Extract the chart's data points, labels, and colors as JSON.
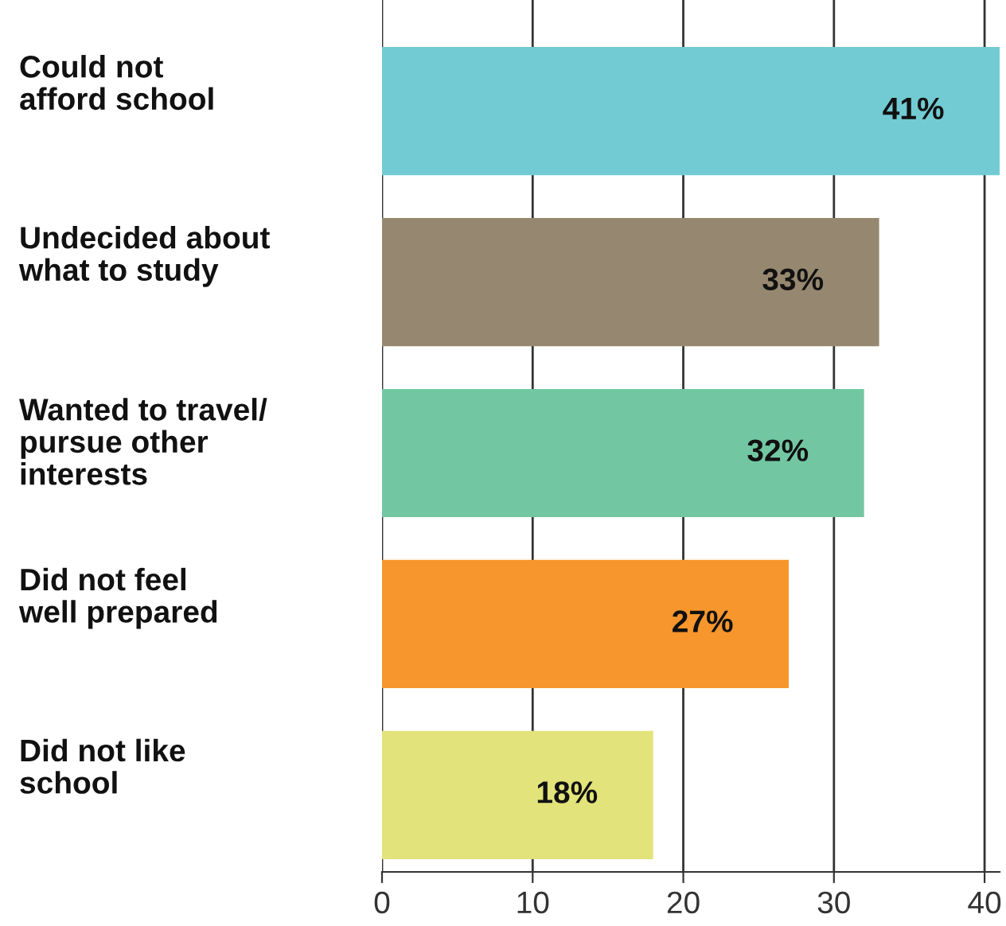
{
  "chart_data": {
    "type": "bar",
    "orientation": "horizontal",
    "categories": [
      "Could not\nafford school",
      "Undecided about\nwhat to study",
      "Wanted to travel/\npursue other\ninterests",
      "Did not feel\nwell prepared",
      "Did not like\nschool"
    ],
    "values": [
      41,
      33,
      32,
      27,
      18
    ],
    "colors": [
      "#72cbd3",
      "#968870",
      "#72c7a2",
      "#f7962c",
      "#e2e37a"
    ],
    "value_labels": [
      "41%",
      "33%",
      "32%",
      "27%",
      "18%"
    ],
    "xlim": [
      0,
      41
    ],
    "xticks": [
      0,
      10,
      20,
      30,
      40
    ],
    "grid": "x",
    "legend": false
  }
}
